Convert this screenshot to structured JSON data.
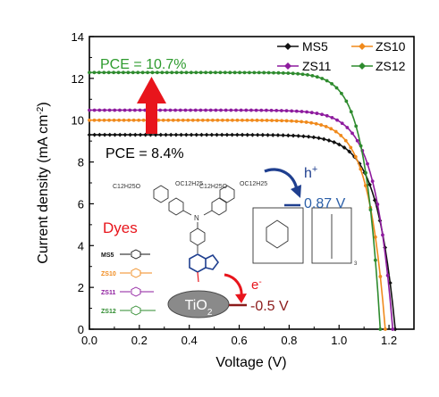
{
  "chart_data": {
    "type": "line",
    "xlabel": "Voltage (V)",
    "ylabel": "Current density (mA cm",
    "ylabel_sup": "-2",
    "ylabel_close": ")",
    "xlim": [
      0.0,
      1.3
    ],
    "ylim": [
      0,
      14
    ],
    "x_ticks": [
      0.0,
      0.2,
      0.4,
      0.6,
      0.8,
      1.0,
      1.2
    ],
    "x_tick_labels": [
      "0.0",
      "0.2",
      "0.4",
      "0.6",
      "0.8",
      "1.0",
      "1.2"
    ],
    "y_ticks": [
      0,
      2,
      4,
      6,
      8,
      10,
      12,
      14
    ],
    "y_tick_labels": [
      "0",
      "2",
      "4",
      "6",
      "8",
      "10",
      "12",
      "14"
    ],
    "legend_placement": "top-right",
    "series": [
      {
        "name": "MS5",
        "color": "#111111",
        "jsc": 9.3,
        "voc": 1.225,
        "k": 0.075,
        "x": [
          0.0,
          0.1,
          0.2,
          0.3,
          0.4,
          0.5,
          0.6,
          0.7,
          0.8,
          0.9,
          1.0,
          1.05,
          1.1,
          1.15,
          1.2,
          1.225
        ],
        "y": [
          9.3,
          9.3,
          9.29,
          9.28,
          9.27,
          9.25,
          9.21,
          9.13,
          8.97,
          8.63,
          7.77,
          6.93,
          5.52,
          3.53,
          0.95,
          0.0
        ]
      },
      {
        "name": "ZS10",
        "color": "#f08a1c",
        "jsc": 10.0,
        "voc": 1.185,
        "k": 0.068,
        "x": [
          0.0,
          0.1,
          0.2,
          0.3,
          0.4,
          0.5,
          0.6,
          0.7,
          0.8,
          0.9,
          1.0,
          1.05,
          1.1,
          1.15,
          1.185
        ],
        "y": [
          9.97,
          9.97,
          9.96,
          9.95,
          9.94,
          9.91,
          9.84,
          9.71,
          9.45,
          8.9,
          7.6,
          6.3,
          4.25,
          1.85,
          0.0
        ]
      },
      {
        "name": "ZS11",
        "color": "#8e1b9e",
        "jsc": 10.48,
        "voc": 1.215,
        "k": 0.072,
        "x": [
          0.0,
          0.1,
          0.2,
          0.3,
          0.4,
          0.5,
          0.6,
          0.7,
          0.8,
          0.9,
          1.0,
          1.05,
          1.1,
          1.15,
          1.2,
          1.215
        ],
        "y": [
          10.48,
          10.48,
          10.47,
          10.46,
          10.45,
          10.43,
          10.38,
          10.28,
          10.07,
          9.64,
          8.59,
          7.54,
          5.95,
          3.59,
          0.7,
          0.0
        ]
      },
      {
        "name": "ZS12",
        "color": "#2e8b2e",
        "jsc": 12.28,
        "voc": 1.165,
        "k": 0.062,
        "x": [
          0.0,
          0.1,
          0.2,
          0.3,
          0.4,
          0.5,
          0.6,
          0.7,
          0.8,
          0.9,
          1.0,
          1.05,
          1.1,
          1.15,
          1.165
        ],
        "y": [
          12.28,
          12.2,
          12.14,
          12.1,
          12.06,
          12.03,
          11.99,
          11.87,
          11.58,
          10.85,
          8.93,
          7.14,
          4.58,
          1.3,
          0.0
        ]
      }
    ]
  },
  "annotations": {
    "pce_high": "PCE = 10.7%",
    "pce_low": "PCE = 8.4%",
    "pce_high_color": "#2e9b2e",
    "arrow_color": "#e8151c",
    "hole_label": "h",
    "hole_sup": "+",
    "hole_potential": "0.87 V",
    "electron_label": "e",
    "electron_sup": "-",
    "electron_potential": "-0.5 V",
    "tio2_label": "TiO",
    "tio2_sub": "2",
    "dyes_title": "Dyes",
    "dyes_title_color": "#e8151c",
    "dye_labels": [
      "MS5",
      "ZS10",
      "ZS11",
      "ZS12"
    ],
    "dye_colors": [
      "#111111",
      "#f08a1c",
      "#8e1b9e",
      "#2e8b2e"
    ],
    "substituent_top_left": "C12H25O",
    "substituent_top_mid": "OC12H25",
    "substituent_top_mid2": "C12H25O",
    "substituent_top_right": "OC12H25",
    "redox_subscript": "3",
    "blue_accent": "#1f3f8f"
  }
}
